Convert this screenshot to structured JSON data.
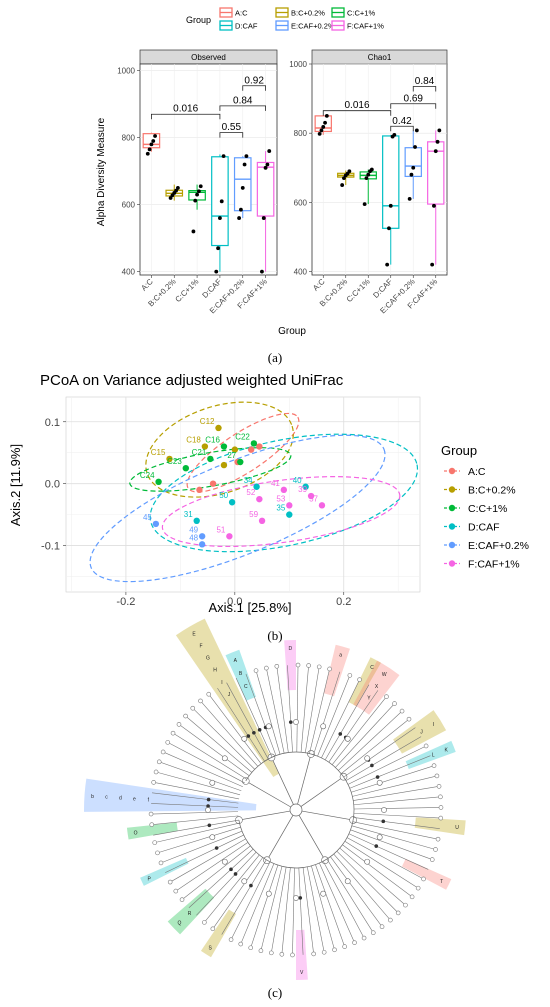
{
  "panels": {
    "a_label": "(a)",
    "b_label": "(b)",
    "c_label": "(c)"
  },
  "colors": {
    "A:C": "#f8766d",
    "B:C+0.2%": "#b79f00",
    "C:C+1%": "#00ba38",
    "D:CAF": "#00bfc4",
    "E:CAF+0.2%": "#619cff",
    "F:CAF+1%": "#f564e3"
  },
  "chart_data": [
    {
      "type": "box",
      "panel": "a",
      "legend": {
        "title": "Group",
        "placement": "top",
        "entries": [
          "A:C",
          "B:C+0.2%",
          "C:C+1%",
          "D:CAF",
          "E:CAF+0.2%",
          "F:CAF+1%"
        ]
      },
      "ylabel": "Alpha Diversity Measure",
      "xlabel": "Group",
      "categories": [
        "A:C",
        "B:C+0.2%",
        "C:C+1%",
        "D:CAF",
        "E:CAF+0.2%",
        "F:CAF+1%"
      ],
      "facets": [
        {
          "title": "Observed",
          "ylim": [
            390,
            1020
          ],
          "yticks": [
            400,
            600,
            800,
            1000
          ],
          "boxes": [
            {
              "q1": 770,
              "median": 780,
              "q3": 812,
              "low": 758,
              "high": 815
            },
            {
              "q1": 626,
              "median": 634,
              "q3": 643,
              "low": 612,
              "high": 660
            },
            {
              "q1": 614,
              "median": 637,
              "q3": 642,
              "low": 585,
              "high": 660
            },
            {
              "q1": 478,
              "median": 566,
              "q3": 743,
              "low": 400,
              "high": 750
            },
            {
              "q1": 582,
              "median": 676,
              "q3": 740,
              "low": 560,
              "high": 745
            },
            {
              "q1": 566,
              "median": 712,
              "q3": 726,
              "low": 400,
              "high": 760
            }
          ],
          "points": [
            [
              752,
              765,
              780,
              790,
              805
            ],
            [
              620,
              628,
              635,
              642,
              650
            ],
            [
              520,
              612,
              630,
              640,
              655
            ],
            [
              400,
              470,
              560,
              610,
              745
            ],
            [
              560,
              585,
              650,
              720,
              745
            ],
            [
              400,
              560,
              710,
              720,
              760
            ]
          ],
          "brackets": [
            {
              "from": 0,
              "to": 3,
              "y": 870,
              "label": "0.016"
            },
            {
              "from": 3,
              "to": 4,
              "y": 815,
              "label": "0.55"
            },
            {
              "from": 3,
              "to": 5,
              "y": 895,
              "label": "0.84"
            },
            {
              "from": 4,
              "to": 5,
              "y": 955,
              "label": "0.92"
            }
          ]
        },
        {
          "title": "Chao1",
          "ylim": [
            390,
            1000
          ],
          "yticks": [
            400,
            600,
            800,
            1000
          ],
          "boxes": [
            {
              "q1": 805,
              "median": 815,
              "q3": 850,
              "low": 795,
              "high": 850
            },
            {
              "q1": 673,
              "median": 678,
              "q3": 684,
              "low": 650,
              "high": 692
            },
            {
              "q1": 668,
              "median": 678,
              "q3": 688,
              "low": 595,
              "high": 695
            },
            {
              "q1": 525,
              "median": 590,
              "q3": 792,
              "low": 420,
              "high": 795
            },
            {
              "q1": 675,
              "median": 705,
              "q3": 758,
              "low": 610,
              "high": 808
            },
            {
              "q1": 595,
              "median": 748,
              "q3": 775,
              "low": 420,
              "high": 808
            }
          ],
          "points": [
            [
              798,
              808,
              818,
              830,
              850
            ],
            [
              650,
              670,
              678,
              683,
              690
            ],
            [
              595,
              670,
              680,
              690,
              695
            ],
            [
              420,
              525,
              590,
              790,
              795
            ],
            [
              610,
              680,
              700,
              760,
              808
            ],
            [
              420,
              590,
              748,
              775,
              808
            ]
          ],
          "brackets": [
            {
              "from": 0,
              "to": 3,
              "y": 865,
              "label": "0.016"
            },
            {
              "from": 3,
              "to": 4,
              "y": 820,
              "label": "0.42"
            },
            {
              "from": 3,
              "to": 5,
              "y": 885,
              "label": "0.69"
            },
            {
              "from": 4,
              "to": 5,
              "y": 935,
              "label": "0.84"
            }
          ]
        }
      ]
    },
    {
      "type": "scatter",
      "panel": "b",
      "title": "PCoA on Variance adjusted weighted UniFrac",
      "xlabel": "Axis.1   [25.8%]",
      "ylabel": "Axis.2   [11.9%]",
      "xlim": [
        -0.31,
        0.34
      ],
      "ylim": [
        -0.175,
        0.14
      ],
      "xticks": [
        -0.2,
        0.0,
        0.2
      ],
      "yticks": [
        -0.1,
        0.0,
        0.1
      ],
      "grid": true,
      "legend": {
        "title": "Group",
        "placement": "right",
        "entries": [
          "A:C",
          "B:C+0.2%",
          "C:C+1%",
          "D:CAF",
          "E:CAF+0.2%",
          "F:CAF+1%"
        ]
      },
      "ellipses": [
        {
          "group": "A:C",
          "cx": 0.015,
          "cy": 0.05,
          "rx": 0.12,
          "ry": 0.032,
          "angle": 33
        },
        {
          "group": "B:C+0.2%",
          "cx": -0.028,
          "cy": 0.055,
          "rx": 0.14,
          "ry": 0.07,
          "angle": 18
        },
        {
          "group": "C:C+1%",
          "cx": -0.045,
          "cy": 0.023,
          "rx": 0.15,
          "ry": 0.027,
          "angle": 10
        },
        {
          "group": "D:CAF",
          "cx": 0.09,
          "cy": -0.015,
          "rx": 0.25,
          "ry": 0.085,
          "angle": 12
        },
        {
          "group": "E:CAF+0.2%",
          "cx": 0.005,
          "cy": -0.04,
          "rx": 0.29,
          "ry": 0.075,
          "angle": 22
        },
        {
          "group": "F:CAF+1%",
          "cx": 0.085,
          "cy": -0.045,
          "rx": 0.22,
          "ry": 0.05,
          "angle": 8
        }
      ],
      "points": [
        {
          "group": "A:C",
          "x": 0.03,
          "y": 0.055,
          "label": ""
        },
        {
          "group": "A:C",
          "x": 0.045,
          "y": 0.06,
          "label": ""
        },
        {
          "group": "A:C",
          "x": 0.005,
          "y": 0.035,
          "label": ""
        },
        {
          "group": "A:C",
          "x": -0.04,
          "y": 0.0,
          "label": ""
        },
        {
          "group": "A:C",
          "x": -0.065,
          "y": -0.01,
          "label": ""
        },
        {
          "group": "B:C+0.2%",
          "x": -0.03,
          "y": 0.09,
          "label": "C12"
        },
        {
          "group": "B:C+0.2%",
          "x": -0.055,
          "y": 0.06,
          "label": "C18"
        },
        {
          "group": "B:C+0.2%",
          "x": -0.12,
          "y": 0.04,
          "label": "C15"
        },
        {
          "group": "B:C+0.2%",
          "x": 0.0,
          "y": 0.055,
          "label": ""
        },
        {
          "group": "B:C+0.2%",
          "x": -0.02,
          "y": 0.03,
          "label": ""
        },
        {
          "group": "C:C+1%",
          "x": 0.035,
          "y": 0.065,
          "label": "C22"
        },
        {
          "group": "C:C+1%",
          "x": -0.045,
          "y": 0.04,
          "label": "C21"
        },
        {
          "group": "C:C+1%",
          "x": -0.02,
          "y": 0.06,
          "label": "C16"
        },
        {
          "group": "C:C+1%",
          "x": -0.14,
          "y": 0.003,
          "label": "C24"
        },
        {
          "group": "C:C+1%",
          "x": -0.09,
          "y": 0.025,
          "label": "C23"
        },
        {
          "group": "C:C+1%",
          "x": 0.01,
          "y": 0.035,
          "label": "27"
        },
        {
          "group": "D:CAF",
          "x": 0.04,
          "y": -0.005,
          "label": "34"
        },
        {
          "group": "D:CAF",
          "x": 0.13,
          "y": -0.005,
          "label": "40"
        },
        {
          "group": "D:CAF",
          "x": -0.005,
          "y": -0.03,
          "label": "50"
        },
        {
          "group": "D:CAF",
          "x": -0.07,
          "y": -0.06,
          "label": "31"
        },
        {
          "group": "D:CAF",
          "x": 0.1,
          "y": -0.05,
          "label": "35"
        },
        {
          "group": "E:CAF+0.2%",
          "x": -0.145,
          "y": -0.065,
          "label": "45"
        },
        {
          "group": "E:CAF+0.2%",
          "x": -0.06,
          "y": -0.085,
          "label": "49"
        },
        {
          "group": "E:CAF+0.2%",
          "x": -0.06,
          "y": -0.098,
          "label": "48"
        },
        {
          "group": "F:CAF+1%",
          "x": 0.09,
          "y": -0.01,
          "label": "41"
        },
        {
          "group": "F:CAF+1%",
          "x": 0.045,
          "y": -0.025,
          "label": "52"
        },
        {
          "group": "F:CAF+1%",
          "x": 0.1,
          "y": -0.035,
          "label": "53"
        },
        {
          "group": "F:CAF+1%",
          "x": 0.14,
          "y": -0.02,
          "label": "39"
        },
        {
          "group": "F:CAF+1%",
          "x": 0.16,
          "y": -0.035,
          "label": "57"
        },
        {
          "group": "F:CAF+1%",
          "x": 0.05,
          "y": -0.06,
          "label": "59"
        },
        {
          "group": "F:CAF+1%",
          "x": -0.01,
          "y": -0.085,
          "label": "51"
        }
      ]
    }
  ],
  "cladogram": {
    "highlights": [
      {
        "angle": -120,
        "span": 9,
        "group": "B:C+0.2%",
        "letters": [
          "E",
          "F",
          "G",
          "H",
          "I",
          "J"
        ]
      },
      {
        "angle": -112,
        "span": 5,
        "group": "D:CAF",
        "letters": [
          "A",
          "B",
          "C"
        ]
      },
      {
        "angle": -176,
        "span": 9,
        "group": "E:CAF+0.2%",
        "letters": [
          "b",
          "c",
          "d",
          "e",
          "f"
        ]
      },
      {
        "angle": -74,
        "span": 5,
        "group": "A:C",
        "letters": [
          "a"
        ]
      },
      {
        "angle": -92,
        "span": 4,
        "group": "F:CAF+1%",
        "letters": [
          "D"
        ]
      },
      {
        "angle": -62,
        "span": 4,
        "group": "B:C+0.2%",
        "letters": [
          "C"
        ]
      },
      {
        "angle": -57,
        "span": 9,
        "group": "A:C",
        "letters": [
          "W",
          "X",
          "Y"
        ]
      },
      {
        "angle": -32,
        "span": 8,
        "group": "B:C+0.2%",
        "letters": [
          "I",
          "J"
        ]
      },
      {
        "angle": -22,
        "span": 4,
        "group": "D:CAF",
        "letters": [
          "K",
          "L"
        ]
      },
      {
        "angle": 6,
        "span": 5,
        "group": "B:C+0.2%",
        "letters": [
          "U"
        ]
      },
      {
        "angle": 26,
        "span": 4,
        "group": "A:C",
        "letters": [
          "T"
        ]
      },
      {
        "angle": 88,
        "span": 4,
        "group": "F:CAF+1%",
        "letters": [
          "V"
        ]
      },
      {
        "angle": 122,
        "span": 4,
        "group": "B:C+0.2%",
        "letters": [
          "S"
        ]
      },
      {
        "angle": 136,
        "span": 6,
        "group": "C:C+1%",
        "letters": [
          "Q",
          "R"
        ]
      },
      {
        "angle": 155,
        "span": 3,
        "group": "D:CAF",
        "letters": [
          "P"
        ]
      },
      {
        "angle": 172,
        "span": 4,
        "group": "C:C+1%",
        "letters": [
          "O"
        ]
      }
    ]
  }
}
